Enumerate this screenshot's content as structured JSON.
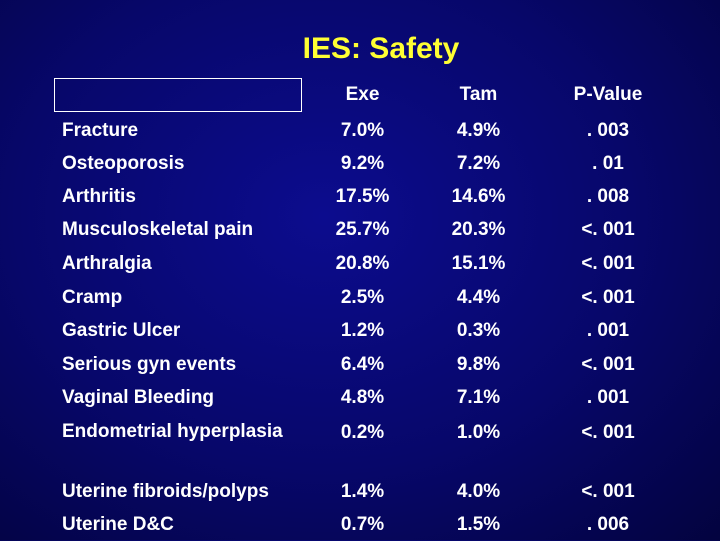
{
  "slide": {
    "title": "IES: Safety"
  },
  "table": {
    "headers": {
      "label": "",
      "exe": "Exe",
      "tam": "Tam",
      "p_value": "P-Value"
    },
    "rows": [
      {
        "label": "Fracture",
        "exe": "7.0%",
        "tam": "4.9%",
        "p_value": ". 003"
      },
      {
        "label": "Osteoporosis",
        "exe": "9.2%",
        "tam": "7.2%",
        "p_value": ". 01"
      },
      {
        "label": "Arthritis",
        "exe": "17.5%",
        "tam": "14.6%",
        "p_value": ". 008"
      },
      {
        "label": "Musculoskeletal pain",
        "exe": "25.7%",
        "tam": "20.3%",
        "p_value": "<. 001"
      },
      {
        "label": "Arthralgia",
        "exe": "20.8%",
        "tam": "15.1%",
        "p_value": "<. 001"
      },
      {
        "label": "Cramp",
        "exe": "2.5%",
        "tam": "4.4%",
        "p_value": "<. 001"
      },
      {
        "label": "Gastric Ulcer",
        "exe": "1.2%",
        "tam": "0.3%",
        "p_value": ". 001"
      },
      {
        "label": "Serious gyn events",
        "exe": "6.4%",
        "tam": "9.8%",
        "p_value": "<. 001"
      },
      {
        "label": "Vaginal Bleeding",
        "exe": "4.8%",
        "tam": "7.1%",
        "p_value": ". 001"
      },
      {
        "label": "Endometrial hyperplasia",
        "exe": "0.2%",
        "tam": "1.0%",
        "p_value": "<. 001"
      },
      {
        "label": "Uterine fibroids/polyps",
        "exe": "1.4%",
        "tam": "4.0%",
        "p_value": "<. 001"
      },
      {
        "label": "Uterine D&C",
        "exe": "0.7%",
        "tam": "1.5%",
        "p_value": ". 006"
      }
    ]
  },
  "colors": {
    "title": "#ffff33",
    "text": "#ffffff",
    "background": "#07076a"
  }
}
